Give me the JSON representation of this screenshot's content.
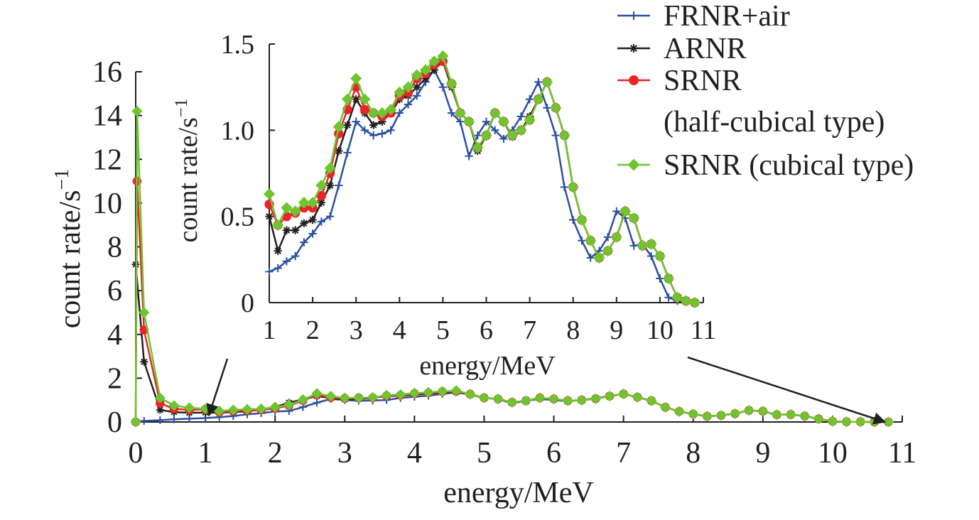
{
  "colors": {
    "frnr": "#2b4fa2",
    "arnr": "#231f20",
    "srnr_half": "#e8262a",
    "srnr_cubic": "#6ec530",
    "axis": "#231f20"
  },
  "legend": [
    {
      "key": "frnr",
      "lines": [
        "FRNR+air"
      ],
      "marker": "plus"
    },
    {
      "key": "arnr",
      "lines": [
        "ARNR"
      ],
      "marker": "asterisk"
    },
    {
      "key": "srnr_half",
      "lines": [
        "SRNR",
        "(half-cubical type)"
      ],
      "marker": "circle"
    },
    {
      "key": "srnr_cubic",
      "lines": [
        "SRNR (cubical type)"
      ],
      "marker": "diamond"
    }
  ],
  "chart_data": [
    {
      "type": "line",
      "xlabel": "energy/MeV",
      "ylabel": "count rate/s",
      "ylabel_unit_sup": "−1",
      "xlim": [
        0,
        11
      ],
      "ylim": [
        0,
        16
      ],
      "xticks": [
        "0",
        "1",
        "2",
        "3",
        "4",
        "5",
        "6",
        "7",
        "8",
        "9",
        "10",
        "11"
      ],
      "yticks": [
        "0",
        "2",
        "4",
        "6",
        "8",
        "10",
        "12",
        "14",
        "16"
      ],
      "series": [
        {
          "name": "FRNR+air",
          "key": "frnr",
          "marker": "plus",
          "x": [
            0.0,
            0.12,
            0.35,
            0.55,
            0.77,
            1.0,
            1.2,
            1.4,
            1.6,
            1.8,
            2.0,
            2.2,
            2.4,
            2.6,
            2.8,
            3.0,
            3.2,
            3.4,
            3.6,
            3.8,
            4.0,
            4.2,
            4.4,
            4.6,
            4.8,
            5.0,
            5.2,
            5.4,
            5.6,
            5.8,
            6.0,
            6.2,
            6.4,
            6.6,
            6.8,
            7.0,
            7.2,
            7.4,
            7.6,
            7.8,
            8.0,
            8.2,
            8.4,
            8.6,
            8.8,
            9.0,
            9.2,
            9.4,
            9.6,
            9.8,
            10.0,
            10.2,
            10.4,
            10.6,
            10.8
          ],
          "y": [
            0.0,
            0.05,
            0.08,
            0.12,
            0.15,
            0.18,
            0.22,
            0.27,
            0.35,
            0.4,
            0.48,
            0.5,
            0.68,
            0.88,
            1.05,
            1.0,
            0.97,
            0.98,
            1.0,
            1.1,
            1.15,
            1.2,
            1.28,
            1.35,
            1.25,
            1.1,
            1.05,
            0.85,
            0.97,
            1.05,
            1.0,
            0.95,
            1.0,
            1.08,
            1.18,
            1.28,
            1.13,
            0.97,
            0.67,
            0.48,
            0.36,
            0.26,
            0.3,
            0.38,
            0.53,
            0.49,
            0.33,
            0.34,
            0.27,
            0.14,
            0.03,
            0.01,
            0.01,
            0.0,
            0.0
          ]
        },
        {
          "name": "ARNR",
          "key": "arnr",
          "marker": "asterisk",
          "x": [
            0.0,
            0.12,
            0.35,
            0.55,
            0.77,
            1.0,
            1.2,
            1.4,
            1.6,
            1.8,
            2.0,
            2.2,
            2.4,
            2.6,
            2.8,
            3.0,
            3.2,
            3.4,
            3.6,
            3.8,
            4.0,
            4.2,
            4.4,
            4.6,
            4.8,
            5.0,
            5.2,
            5.4,
            5.6,
            5.8,
            6.0,
            6.2,
            6.4,
            6.6,
            6.8,
            7.0,
            7.2,
            7.4,
            7.6,
            7.8,
            8.0,
            8.2,
            8.4,
            8.6,
            8.8,
            9.0,
            9.2,
            9.4,
            9.6,
            9.8,
            10.0,
            10.2,
            10.4,
            10.6,
            10.8
          ],
          "y": [
            7.2,
            2.75,
            0.55,
            0.45,
            0.42,
            0.43,
            0.42,
            0.46,
            0.48,
            0.58,
            0.68,
            0.88,
            1.03,
            1.18,
            1.1,
            1.03,
            1.05,
            1.1,
            1.18,
            1.2,
            1.25,
            1.3,
            1.35,
            1.4,
            1.25,
            1.1,
            1.05,
            0.88,
            0.97,
            1.1,
            1.05,
            0.96,
            1.0,
            1.08,
            1.18,
            1.28,
            1.13,
            0.97,
            0.67,
            0.48,
            0.36,
            0.26,
            0.3,
            0.38,
            0.53,
            0.49,
            0.33,
            0.34,
            0.27,
            0.14,
            0.03,
            0.01,
            0.01,
            0.0,
            0.0
          ]
        },
        {
          "name": "SRNR (half-cubical type)",
          "key": "srnr_half",
          "marker": "circle",
          "x": [
            0.0,
            0.02,
            0.12,
            0.35,
            0.55,
            0.77,
            1.0,
            1.2,
            1.4,
            1.6,
            1.8,
            2.0,
            2.2,
            2.4,
            2.6,
            2.8,
            3.0,
            3.2,
            3.4,
            3.6,
            3.8,
            4.0,
            4.2,
            4.4,
            4.6,
            4.8,
            5.0,
            5.2,
            5.4,
            5.6,
            5.8,
            6.0,
            6.2,
            6.4,
            6.6,
            6.8,
            7.0,
            7.2,
            7.4,
            7.6,
            7.8,
            8.0,
            8.2,
            8.4,
            8.6,
            8.8,
            9.0,
            9.2,
            9.4,
            9.6,
            9.8,
            10.0,
            10.2,
            10.4,
            10.6,
            10.8
          ],
          "y": [
            0.0,
            11.0,
            4.2,
            0.85,
            0.6,
            0.55,
            0.58,
            0.45,
            0.5,
            0.52,
            0.55,
            0.62,
            0.75,
            0.98,
            1.25,
            1.12,
            1.08,
            1.1,
            1.1,
            1.2,
            1.22,
            1.3,
            1.33,
            1.38,
            1.4,
            1.27,
            1.1,
            1.05,
            0.9,
            0.97,
            1.1,
            1.05,
            0.97,
            1.0,
            1.06,
            1.18,
            1.28,
            1.13,
            0.97,
            0.67,
            0.48,
            0.36,
            0.26,
            0.3,
            0.38,
            0.53,
            0.49,
            0.33,
            0.34,
            0.27,
            0.14,
            0.03,
            0.01,
            0.01,
            0.0,
            0.0
          ]
        },
        {
          "name": "SRNR (cubical type)",
          "key": "srnr_cubic",
          "marker": "diamond",
          "x": [
            0.0,
            0.02,
            0.12,
            0.35,
            0.55,
            0.77,
            1.0,
            1.2,
            1.4,
            1.6,
            1.8,
            2.0,
            2.2,
            2.4,
            2.6,
            2.8,
            3.0,
            3.2,
            3.4,
            3.6,
            3.8,
            4.0,
            4.2,
            4.4,
            4.6,
            4.8,
            5.0,
            5.2,
            5.4,
            5.6,
            5.8,
            6.0,
            6.2,
            6.4,
            6.6,
            6.8,
            7.0,
            7.2,
            7.4,
            7.6,
            7.8,
            8.0,
            8.2,
            8.4,
            8.6,
            8.8,
            9.0,
            9.2,
            9.4,
            9.6,
            9.8,
            10.0,
            10.2,
            10.4,
            10.6,
            10.8
          ],
          "y": [
            0.0,
            14.2,
            5.0,
            1.1,
            0.75,
            0.65,
            0.6,
            0.5,
            0.55,
            0.58,
            0.6,
            0.68,
            0.78,
            1.02,
            1.3,
            1.18,
            1.1,
            1.1,
            1.12,
            1.22,
            1.25,
            1.32,
            1.35,
            1.4,
            1.43,
            1.27,
            1.1,
            1.05,
            0.9,
            0.97,
            1.1,
            1.05,
            0.97,
            1.0,
            1.06,
            1.18,
            1.28,
            1.13,
            0.97,
            0.67,
            0.48,
            0.36,
            0.26,
            0.3,
            0.38,
            0.53,
            0.49,
            0.33,
            0.34,
            0.27,
            0.14,
            0.03,
            0.01,
            0.01,
            0.0,
            0.0
          ]
        }
      ]
    },
    {
      "type": "line",
      "role": "inset",
      "xlabel": "energy/MeV",
      "ylabel": "count rate/s",
      "ylabel_unit_sup": "−1",
      "xlim": [
        1,
        11
      ],
      "ylim": [
        0,
        1.5
      ],
      "xticks": [
        "1",
        "2",
        "3",
        "4",
        "5",
        "6",
        "7",
        "8",
        "9",
        "10",
        "11"
      ],
      "ytick_values": [
        0,
        0.5,
        1.0,
        1.5
      ],
      "yticks": [
        "0",
        "0.5",
        "1.0",
        "1.5"
      ],
      "series": [
        {
          "name": "FRNR+air",
          "key": "frnr",
          "marker": "plus",
          "x": [
            1.0,
            1.2,
            1.4,
            1.6,
            1.8,
            2.0,
            2.2,
            2.4,
            2.6,
            2.8,
            3.0,
            3.2,
            3.4,
            3.6,
            3.8,
            4.0,
            4.2,
            4.4,
            4.6,
            4.8,
            5.0,
            5.2,
            5.4,
            5.6,
            5.8,
            6.0,
            6.2,
            6.4,
            6.6,
            6.8,
            7.0,
            7.2,
            7.4,
            7.6,
            7.8,
            8.0,
            8.2,
            8.4,
            8.6,
            8.8,
            9.0,
            9.2,
            9.4,
            9.6,
            9.8,
            10.0,
            10.2,
            10.4,
            10.6,
            10.8
          ],
          "y": [
            0.18,
            0.2,
            0.24,
            0.27,
            0.35,
            0.4,
            0.47,
            0.5,
            0.68,
            0.87,
            1.05,
            1.0,
            0.97,
            0.98,
            1.0,
            1.1,
            1.15,
            1.2,
            1.28,
            1.35,
            1.25,
            1.1,
            1.05,
            0.85,
            0.97,
            1.05,
            1.0,
            0.95,
            1.0,
            1.08,
            1.18,
            1.28,
            1.13,
            0.97,
            0.67,
            0.48,
            0.36,
            0.26,
            0.3,
            0.38,
            0.53,
            0.49,
            0.33,
            0.34,
            0.27,
            0.14,
            0.03,
            0.01,
            0.01,
            0.0
          ]
        },
        {
          "name": "ARNR",
          "key": "arnr",
          "marker": "asterisk",
          "x": [
            1.0,
            1.2,
            1.4,
            1.6,
            1.8,
            2.0,
            2.2,
            2.4,
            2.6,
            2.8,
            3.0,
            3.2,
            3.4,
            3.6,
            3.8,
            4.0,
            4.2,
            4.4,
            4.6,
            4.8,
            5.0,
            5.2,
            5.4,
            5.6,
            5.8,
            6.0,
            6.2,
            6.4,
            6.6,
            6.8,
            7.0,
            7.2,
            7.4,
            7.6,
            7.8,
            8.0,
            8.2,
            8.4,
            8.6,
            8.8,
            9.0,
            9.2,
            9.4,
            9.6,
            9.8,
            10.0,
            10.2,
            10.4,
            10.6,
            10.8
          ],
          "y": [
            0.5,
            0.3,
            0.42,
            0.42,
            0.46,
            0.48,
            0.58,
            0.68,
            0.88,
            1.03,
            1.18,
            1.1,
            1.03,
            1.05,
            1.1,
            1.18,
            1.2,
            1.25,
            1.3,
            1.35,
            1.4,
            1.25,
            1.1,
            1.05,
            0.88,
            0.97,
            1.1,
            1.05,
            0.96,
            1.0,
            1.08,
            1.18,
            1.28,
            1.13,
            0.97,
            0.67,
            0.48,
            0.36,
            0.26,
            0.3,
            0.38,
            0.53,
            0.49,
            0.33,
            0.34,
            0.27,
            0.14,
            0.03,
            0.01,
            0.0
          ]
        },
        {
          "name": "SRNR (half-cubical type)",
          "key": "srnr_half",
          "marker": "circle",
          "x": [
            1.0,
            1.2,
            1.4,
            1.6,
            1.8,
            2.0,
            2.2,
            2.4,
            2.6,
            2.8,
            3.0,
            3.2,
            3.4,
            3.6,
            3.8,
            4.0,
            4.2,
            4.4,
            4.6,
            4.8,
            5.0,
            5.2,
            5.4,
            5.6,
            5.8,
            6.0,
            6.2,
            6.4,
            6.6,
            6.8,
            7.0,
            7.2,
            7.4,
            7.6,
            7.8,
            8.0,
            8.2,
            8.4,
            8.6,
            8.8,
            9.0,
            9.2,
            9.4,
            9.6,
            9.8,
            10.0,
            10.2,
            10.4,
            10.6,
            10.8
          ],
          "y": [
            0.57,
            0.45,
            0.5,
            0.52,
            0.55,
            0.55,
            0.62,
            0.75,
            0.98,
            1.12,
            1.25,
            1.12,
            1.1,
            1.08,
            1.1,
            1.2,
            1.22,
            1.3,
            1.33,
            1.38,
            1.4,
            1.27,
            1.1,
            1.05,
            0.9,
            0.97,
            1.1,
            1.05,
            0.97,
            1.0,
            1.06,
            1.18,
            1.28,
            1.13,
            0.97,
            0.67,
            0.48,
            0.36,
            0.26,
            0.3,
            0.38,
            0.53,
            0.49,
            0.33,
            0.34,
            0.27,
            0.14,
            0.03,
            0.01,
            0.0
          ]
        },
        {
          "name": "SRNR (cubical type)",
          "key": "srnr_cubic",
          "marker": "diamond",
          "x": [
            1.0,
            1.2,
            1.4,
            1.6,
            1.8,
            2.0,
            2.2,
            2.4,
            2.6,
            2.8,
            3.0,
            3.2,
            3.4,
            3.6,
            3.8,
            4.0,
            4.2,
            4.4,
            4.6,
            4.8,
            5.0,
            5.2,
            5.4,
            5.6,
            5.8,
            6.0,
            6.2,
            6.4,
            6.6,
            6.8,
            7.0,
            7.2,
            7.4,
            7.6,
            7.8,
            8.0,
            8.2,
            8.4,
            8.6,
            8.8,
            9.0,
            9.2,
            9.4,
            9.6,
            9.8,
            10.0,
            10.2,
            10.4,
            10.6,
            10.8
          ],
          "y": [
            0.63,
            0.45,
            0.55,
            0.53,
            0.58,
            0.58,
            0.68,
            0.78,
            1.02,
            1.18,
            1.3,
            1.18,
            1.1,
            1.1,
            1.12,
            1.22,
            1.25,
            1.32,
            1.35,
            1.4,
            1.43,
            1.27,
            1.1,
            1.05,
            0.9,
            0.97,
            1.1,
            1.05,
            0.97,
            1.0,
            1.06,
            1.18,
            1.28,
            1.13,
            0.97,
            0.67,
            0.48,
            0.36,
            0.26,
            0.3,
            0.38,
            0.53,
            0.49,
            0.33,
            0.34,
            0.27,
            0.14,
            0.03,
            0.01,
            0.0
          ]
        }
      ]
    }
  ]
}
